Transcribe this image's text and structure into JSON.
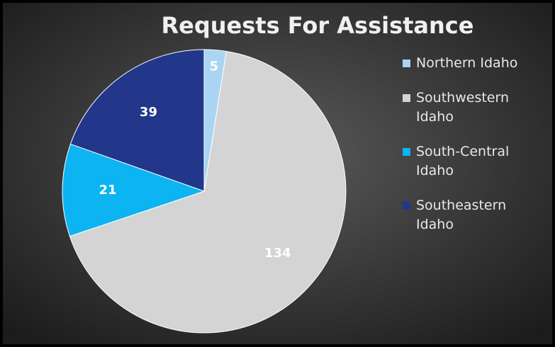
{
  "chart_data": {
    "type": "pie",
    "title": "Requests For Assistance",
    "categories": [
      "Northern Idaho",
      "Southwestern Idaho",
      "South-Central Idaho",
      "Southeastern Idaho"
    ],
    "values": [
      5,
      134,
      21,
      39
    ],
    "colors": [
      "#a9d5f2",
      "#d4d4d4",
      "#0cb4f2",
      "#22378a"
    ],
    "legend": "right"
  }
}
